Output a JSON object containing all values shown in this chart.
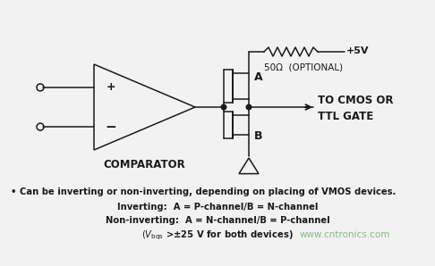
{
  "bg_color": "#f2f2f2",
  "line_color": "#1a1a1a",
  "text_color": "#1a1a1a",
  "watermark_color": "#8ab88a",
  "comparator_label": "COMPARATOR",
  "plus_label": "+",
  "minus_label": "−",
  "resistor_label": "50Ω  (OPTIONAL)",
  "voltage_label": "+5V",
  "point_a_label": "A",
  "point_b_label": "B",
  "output_label_1": "TO CMOS OR",
  "output_label_2": "TTL GATE",
  "bullet_text": "• Can be inverting or non-inverting, depending on placing of VMOS devices.",
  "inverting_text": "Inverting:  A = P-channel/B = N-channel",
  "noninverting_text": "Non-inverting:  A = N-channel/B = P-channel",
  "vbqs_pre": "(V",
  "vbqs_sub": "bqs",
  "vbqs_post": " >±25 V for both devices)",
  "watermark": "www.cntronics.com"
}
